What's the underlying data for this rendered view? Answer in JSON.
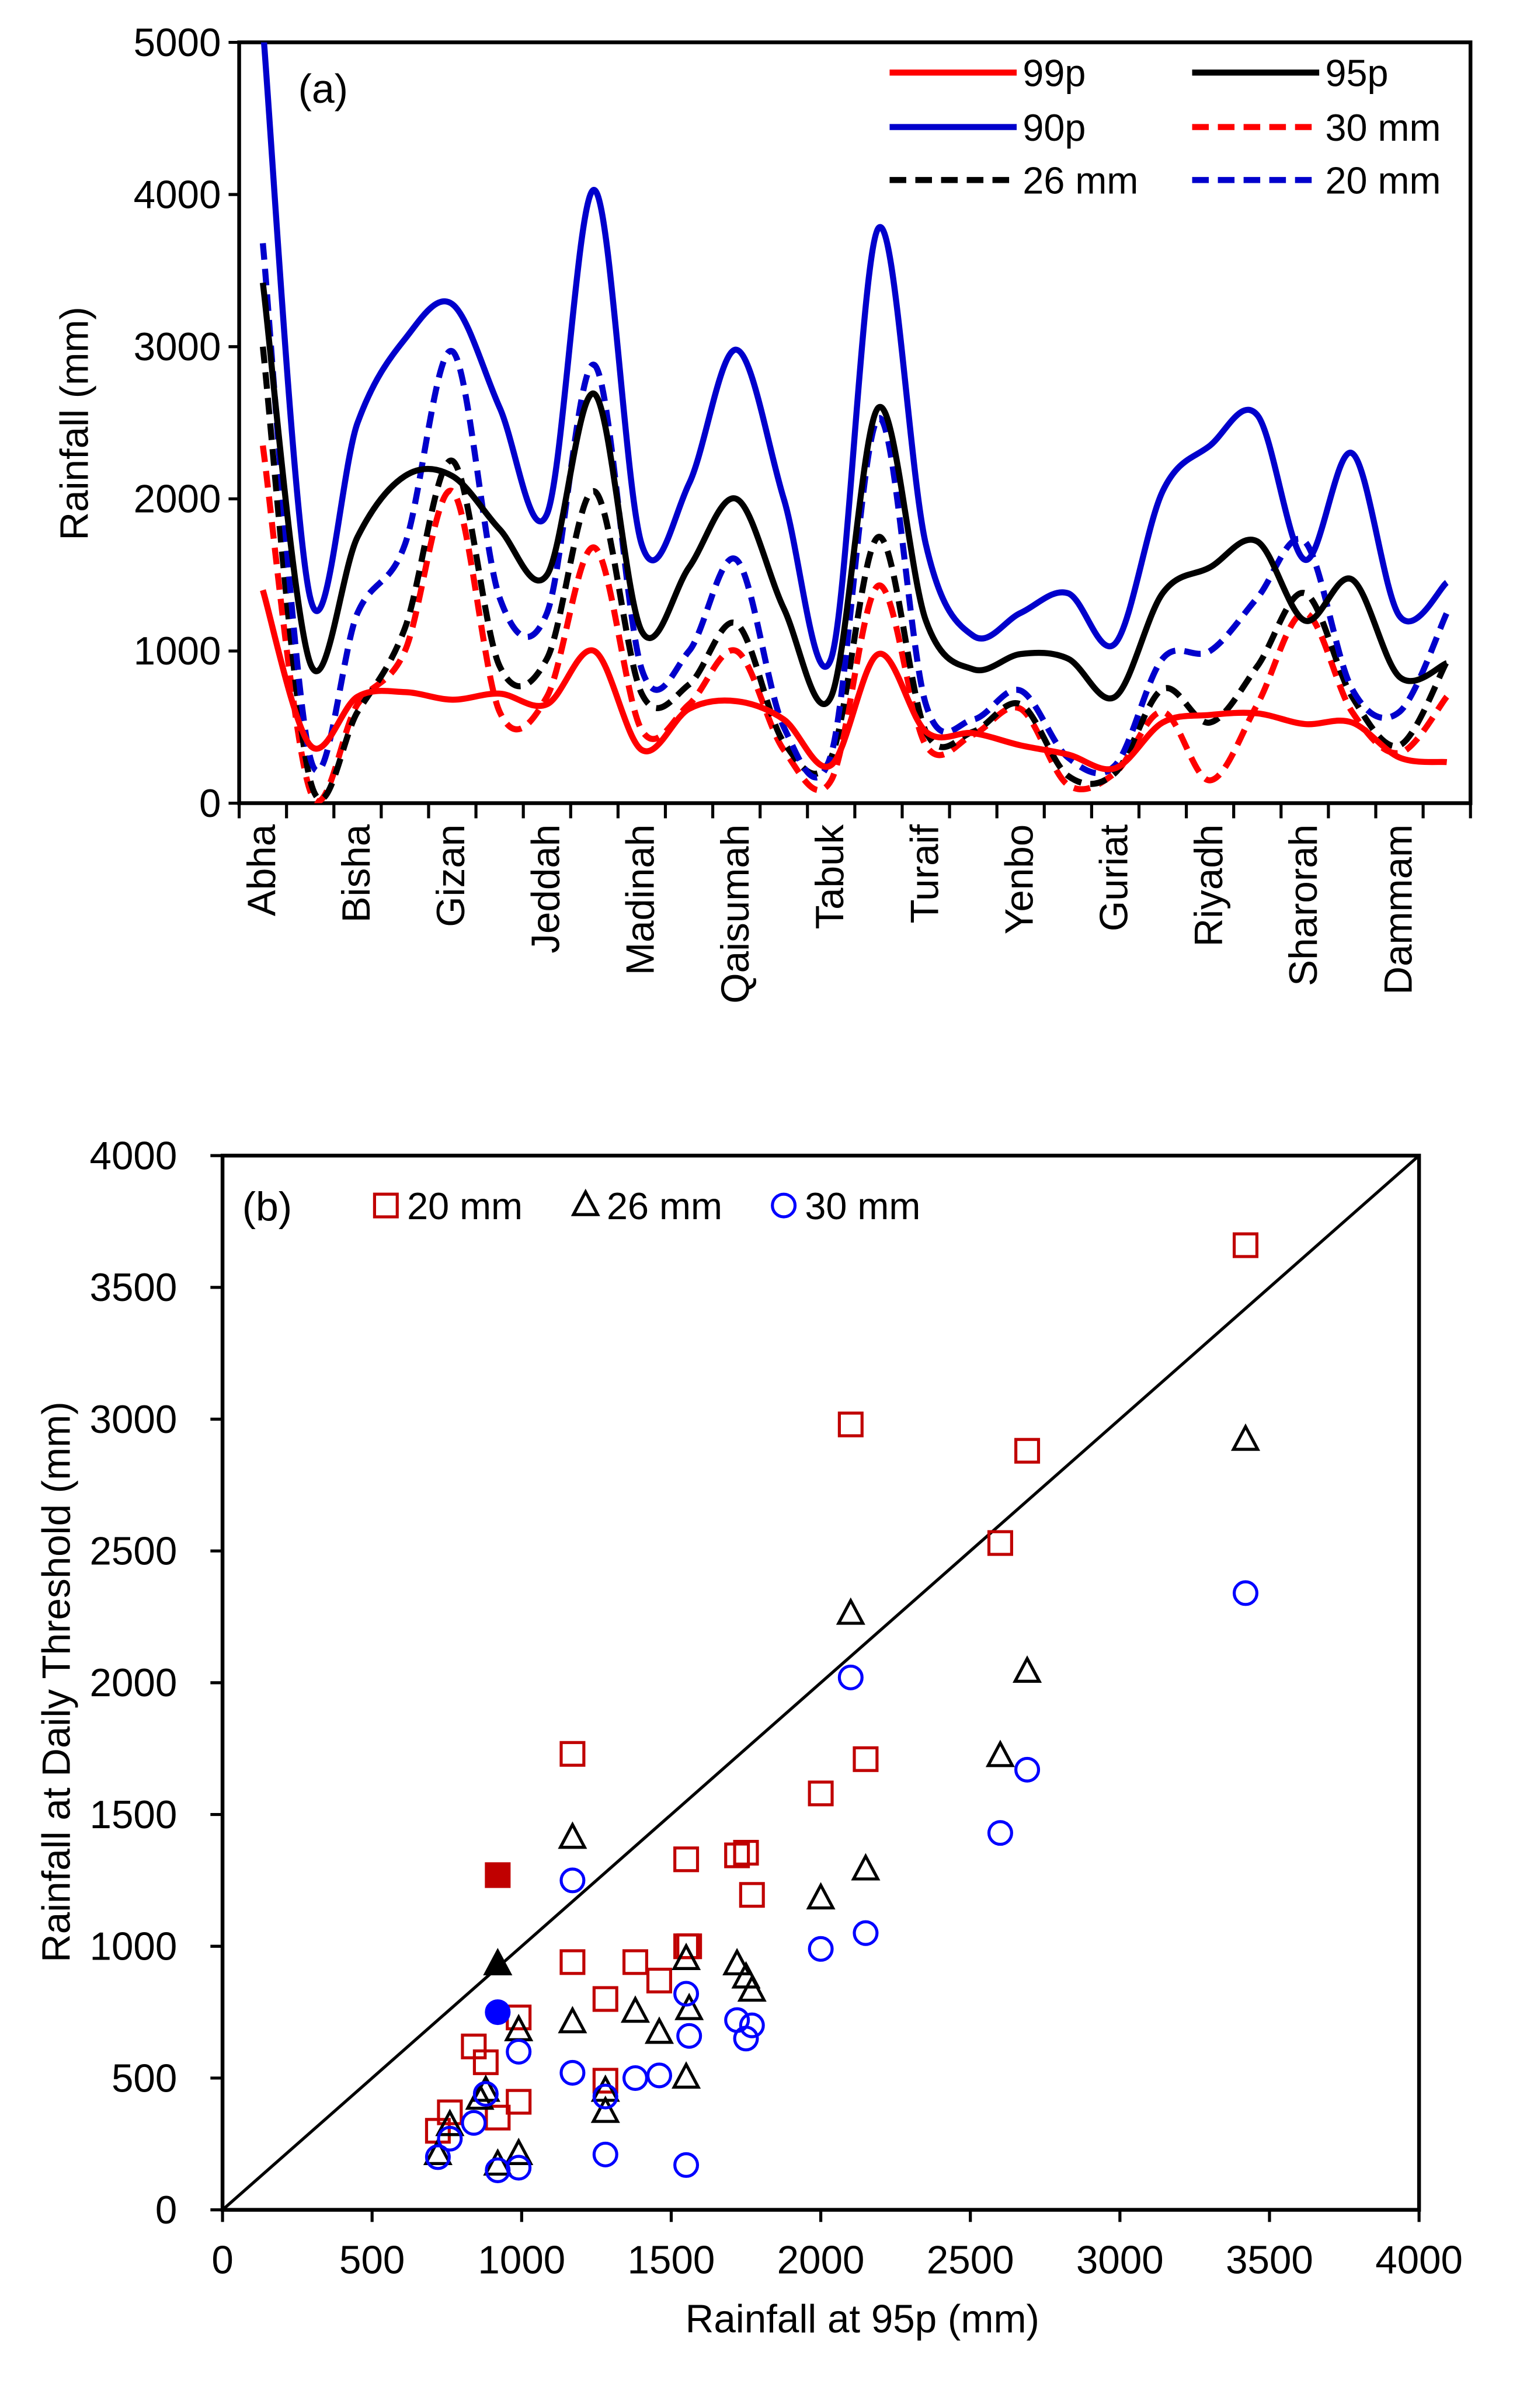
{
  "chart_data": [
    {
      "type": "line",
      "panel_label": "(a)",
      "ylabel": "Rainfall (mm)",
      "xlabel": "",
      "ylim": [
        0,
        5000
      ],
      "yticks": [
        "0",
        "1000",
        "2000",
        "3000",
        "4000",
        "5000"
      ],
      "categories_labeled": [
        "Abha",
        "Bisha",
        "Gizan",
        "Jeddah",
        "Madinah",
        "Qaisumah",
        "Tabuk",
        "Turaif",
        "Yenbo",
        "Guriat",
        "Riyadh",
        "Sharorah",
        "Dammam"
      ],
      "n_stations": 26,
      "legend_position": "top-right",
      "series": [
        {
          "name": "99p",
          "color": "#ff0000",
          "dash": false,
          "values": [
            1400,
            380,
            700,
            730,
            680,
            720,
            650,
            1000,
            350,
            620,
            670,
            550,
            250,
            980,
            470,
            460,
            380,
            320,
            230,
            530,
            580,
            590,
            520,
            530,
            300,
            270
          ]
        },
        {
          "name": "95p",
          "color": "#000000",
          "dash": false,
          "values": [
            3420,
            920,
            1750,
            2150,
            2150,
            1800,
            1500,
            2690,
            1130,
            1550,
            2000,
            1280,
            700,
            2600,
            1200,
            880,
            980,
            950,
            700,
            1380,
            1550,
            1720,
            1200,
            1470,
            830,
            920
          ]
        },
        {
          "name": "90p",
          "color": "#0000cc",
          "dash": false,
          "values": [
            5100,
            1350,
            2500,
            3050,
            3280,
            2600,
            1900,
            4030,
            1700,
            2100,
            2980,
            2000,
            950,
            3780,
            1700,
            1100,
            1250,
            1380,
            1050,
            2050,
            2350,
            2550,
            1600,
            2300,
            1230,
            1450
          ]
        },
        {
          "name": "30 mm",
          "color": "#ff0000",
          "dash": true,
          "values": [
            2350,
            80,
            650,
            1000,
            2050,
            600,
            700,
            1680,
            480,
            650,
            1000,
            350,
            150,
            1430,
            380,
            450,
            620,
            120,
            200,
            600,
            150,
            650,
            1250,
            600,
            330,
            700
          ]
        },
        {
          "name": "26 mm",
          "color": "#000000",
          "dash": true,
          "values": [
            3000,
            150,
            600,
            1150,
            2250,
            900,
            950,
            2050,
            720,
            780,
            1180,
            400,
            300,
            1750,
            470,
            470,
            650,
            180,
            200,
            750,
            530,
            900,
            1380,
            700,
            380,
            930
          ]
        },
        {
          "name": "20 mm",
          "color": "#0000cc",
          "dash": true,
          "values": [
            3680,
            300,
            1250,
            1700,
            2970,
            1350,
            1250,
            2880,
            880,
            1000,
            1600,
            500,
            320,
            2530,
            650,
            550,
            740,
            300,
            250,
            950,
            1000,
            1350,
            1720,
            750,
            600,
            1250
          ]
        }
      ]
    },
    {
      "type": "scatter",
      "panel_label": "(b)",
      "xlabel": "Rainfall at 95p (mm)",
      "ylabel": "Rainfall at Daily Threshold (mm)",
      "xlim": [
        0,
        4000
      ],
      "ylim": [
        0,
        4000
      ],
      "xticks": [
        "0",
        "500",
        "1000",
        "1500",
        "2000",
        "2500",
        "3000",
        "3500",
        "4000"
      ],
      "yticks": [
        "0",
        "500",
        "1000",
        "1500",
        "2000",
        "2500",
        "3000",
        "3500",
        "4000"
      ],
      "reference_line": "1:1",
      "legend_position": "top-left",
      "series": [
        {
          "name": "20 mm",
          "marker": "square",
          "color": "#c00000",
          "filled_point": [
            920,
            1270
          ],
          "points": [
            [
              3420,
              3660
            ],
            [
              2100,
              2980
            ],
            [
              2690,
              2880
            ],
            [
              2600,
              2530
            ],
            [
              2150,
              1710
            ],
            [
              2000,
              1580
            ],
            [
              1170,
              1730
            ],
            [
              1550,
              1330
            ],
            [
              1720,
              1345
            ],
            [
              1750,
              1355
            ],
            [
              1770,
              1195
            ],
            [
              1550,
              1000
            ],
            [
              1560,
              1000
            ],
            [
              1170,
              940
            ],
            [
              1380,
              940
            ],
            [
              1460,
              870
            ],
            [
              1280,
              800
            ],
            [
              990,
              730
            ],
            [
              840,
              620
            ],
            [
              880,
              560
            ],
            [
              1280,
              490
            ],
            [
              990,
              410
            ],
            [
              920,
              350
            ],
            [
              760,
              370
            ],
            [
              720,
              300
            ]
          ]
        },
        {
          "name": "26 mm",
          "marker": "triangle",
          "color": "#000000",
          "filled_point": [
            920,
            930
          ],
          "points": [
            [
              3420,
              2920
            ],
            [
              2100,
              2260
            ],
            [
              2690,
              2040
            ],
            [
              2600,
              1720
            ],
            [
              2150,
              1290
            ],
            [
              2000,
              1180
            ],
            [
              1170,
              1410
            ],
            [
              1550,
              950
            ],
            [
              1720,
              930
            ],
            [
              1750,
              880
            ],
            [
              1770,
              830
            ],
            [
              1560,
              760
            ],
            [
              1380,
              750
            ],
            [
              1460,
              670
            ],
            [
              1170,
              710
            ],
            [
              990,
              680
            ],
            [
              880,
              450
            ],
            [
              860,
              420
            ],
            [
              1280,
              450
            ],
            [
              1280,
              370
            ],
            [
              1550,
              500
            ],
            [
              760,
              320
            ],
            [
              720,
              210
            ],
            [
              920,
              170
            ],
            [
              990,
              210
            ]
          ]
        },
        {
          "name": "30 mm",
          "marker": "circle",
          "color": "#0000ff",
          "filled_point": [
            920,
            750
          ],
          "points": [
            [
              3420,
              2340
            ],
            [
              2100,
              2020
            ],
            [
              2690,
              1670
            ],
            [
              2600,
              1430
            ],
            [
              2150,
              1050
            ],
            [
              2000,
              990
            ],
            [
              1170,
              1250
            ],
            [
              1550,
              820
            ],
            [
              1560,
              660
            ],
            [
              1720,
              720
            ],
            [
              1750,
              650
            ],
            [
              1770,
              700
            ],
            [
              1460,
              510
            ],
            [
              1380,
              500
            ],
            [
              1170,
              520
            ],
            [
              990,
              600
            ],
            [
              880,
              440
            ],
            [
              840,
              330
            ],
            [
              1280,
              430
            ],
            [
              1280,
              210
            ],
            [
              1550,
              170
            ],
            [
              760,
              270
            ],
            [
              720,
              200
            ],
            [
              920,
              150
            ],
            [
              990,
              160
            ]
          ]
        }
      ]
    }
  ]
}
